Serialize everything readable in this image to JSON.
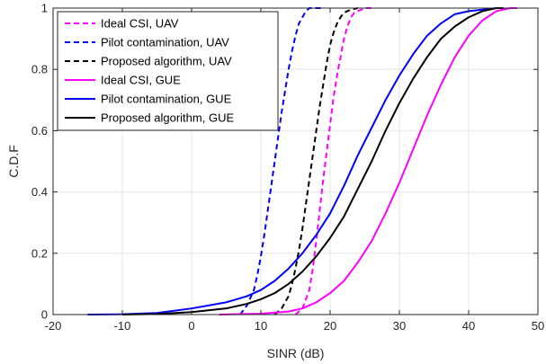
{
  "chart_data": {
    "type": "line",
    "title": "",
    "xlabel": "SINR (dB)",
    "ylabel": "C.D.F",
    "xlim": [
      -20,
      50
    ],
    "ylim": [
      0,
      1
    ],
    "xticks": [
      -20,
      -10,
      0,
      10,
      20,
      30,
      40,
      50
    ],
    "yticks": [
      0,
      0.2,
      0.4,
      0.6,
      0.8,
      1
    ],
    "xtick_labels": [
      "-20",
      "-10",
      "0",
      "10",
      "20",
      "30",
      "40",
      "50"
    ],
    "ytick_labels": [
      "0",
      "0.2",
      "0.4",
      "0.6",
      "0.8",
      "1"
    ],
    "grid": true,
    "legend_position": "top-left",
    "series": [
      {
        "name": "Ideal CSI, UAV",
        "color": "#ff00ff",
        "dash": true,
        "x": [
          15,
          16,
          17,
          17.5,
          18,
          18.5,
          19,
          19.5,
          20,
          20.5,
          21,
          21.5,
          22,
          22.5,
          23,
          23.5,
          24,
          25,
          26
        ],
        "y": [
          0,
          0.02,
          0.08,
          0.15,
          0.24,
          0.34,
          0.44,
          0.53,
          0.62,
          0.71,
          0.78,
          0.84,
          0.9,
          0.94,
          0.97,
          0.985,
          0.99,
          1,
          1
        ]
      },
      {
        "name": "Pilot contamination, UAV",
        "color": "#0000ff",
        "dash": true,
        "x": [
          7,
          8,
          9,
          9.5,
          10,
          10.5,
          11,
          11.5,
          12,
          12.5,
          13,
          13.5,
          14,
          14.5,
          15,
          15.5,
          16,
          16.5,
          17,
          18,
          19
        ],
        "y": [
          0,
          0.03,
          0.08,
          0.13,
          0.19,
          0.26,
          0.34,
          0.42,
          0.5,
          0.58,
          0.66,
          0.73,
          0.8,
          0.86,
          0.91,
          0.95,
          0.97,
          0.99,
          1,
          1,
          1
        ]
      },
      {
        "name": "Proposed algorithm, UAV",
        "color": "#000000",
        "dash": true,
        "x": [
          12,
          13,
          14,
          14.5,
          15,
          15.5,
          16,
          16.5,
          17,
          17.5,
          18,
          18.5,
          19,
          19.5,
          20,
          20.5,
          21,
          21.5,
          22,
          23,
          24
        ],
        "y": [
          0,
          0.02,
          0.06,
          0.1,
          0.15,
          0.21,
          0.28,
          0.36,
          0.44,
          0.52,
          0.6,
          0.68,
          0.75,
          0.82,
          0.88,
          0.92,
          0.95,
          0.97,
          0.985,
          0.995,
          1
        ]
      },
      {
        "name": "Ideal CSI, GUE",
        "color": "#ff00ff",
        "dash": false,
        "x": [
          4,
          10,
          14,
          16,
          18,
          20,
          22,
          24,
          26,
          28,
          30,
          32,
          34,
          36,
          38,
          40,
          42,
          44,
          46,
          47
        ],
        "y": [
          0,
          0.003,
          0.01,
          0.02,
          0.04,
          0.07,
          0.11,
          0.17,
          0.24,
          0.33,
          0.43,
          0.54,
          0.65,
          0.75,
          0.84,
          0.91,
          0.96,
          0.99,
          1,
          1
        ]
      },
      {
        "name": "Pilot contamination, GUE",
        "color": "#0000ff",
        "dash": false,
        "x": [
          -15,
          -10,
          -5,
          0,
          5,
          8,
          10,
          12,
          14,
          16,
          18,
          20,
          22,
          24,
          26,
          28,
          30,
          32,
          34,
          36,
          38,
          40,
          42,
          44,
          45
        ],
        "y": [
          0,
          0.001,
          0.005,
          0.02,
          0.04,
          0.06,
          0.08,
          0.11,
          0.15,
          0.2,
          0.26,
          0.33,
          0.42,
          0.52,
          0.61,
          0.7,
          0.78,
          0.85,
          0.91,
          0.95,
          0.98,
          0.99,
          0.995,
          1,
          1
        ]
      },
      {
        "name": "Proposed algorithm, GUE",
        "color": "#000000",
        "dash": false,
        "x": [
          -10,
          -5,
          0,
          5,
          8,
          10,
          12,
          14,
          16,
          18,
          20,
          22,
          24,
          26,
          28,
          30,
          32,
          34,
          36,
          38,
          40,
          42,
          44,
          45
        ],
        "y": [
          0,
          0.002,
          0.008,
          0.02,
          0.035,
          0.05,
          0.07,
          0.1,
          0.14,
          0.19,
          0.25,
          0.32,
          0.41,
          0.5,
          0.6,
          0.69,
          0.77,
          0.84,
          0.9,
          0.94,
          0.97,
          0.99,
          1,
          1
        ]
      }
    ]
  }
}
